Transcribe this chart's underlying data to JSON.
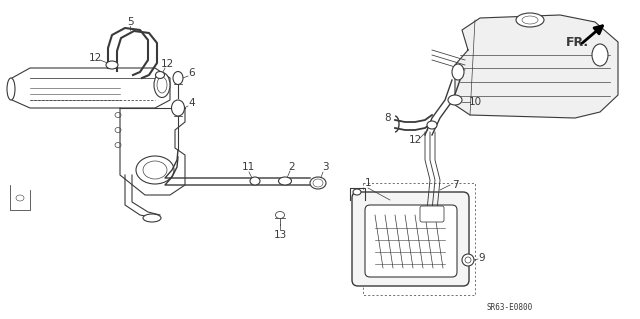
{
  "background_color": "#ffffff",
  "diagram_code": "SR63-E0800",
  "line_color": "#3a3a3a",
  "label_fontsize": 7.5,
  "code_fontsize": 5.5,
  "fig_width": 6.4,
  "fig_height": 3.19,
  "dpi": 100
}
